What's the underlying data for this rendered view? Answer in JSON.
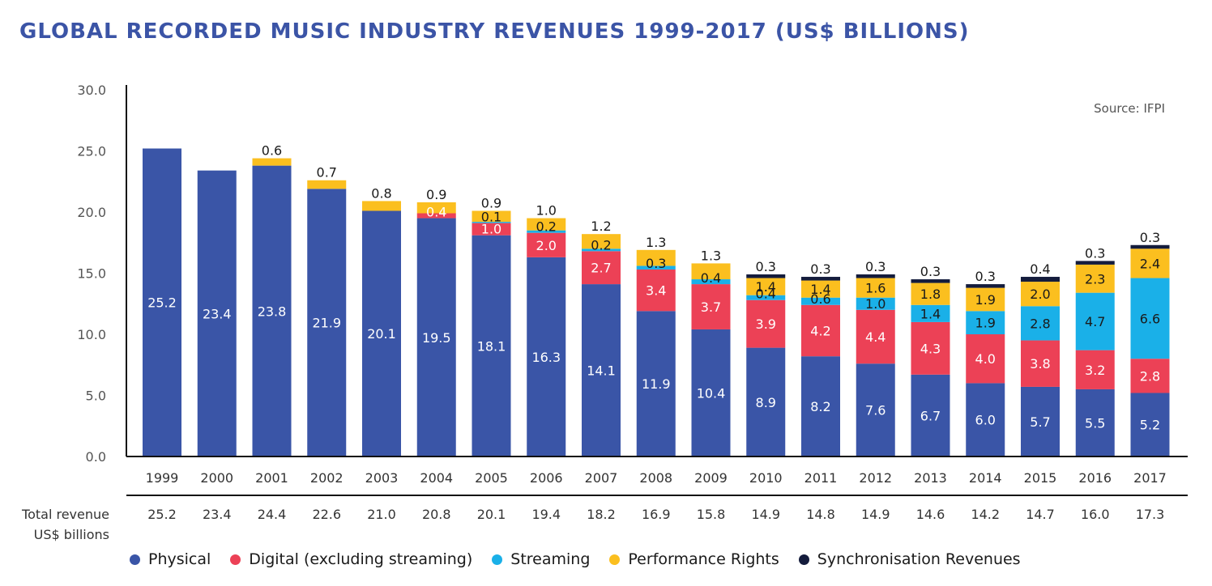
{
  "chart_data": {
    "type": "bar",
    "stacked": true,
    "title": "GLOBAL RECORDED MUSIC INDUSTRY REVENUES 1999-2017 (US$ BILLIONS)",
    "source_note": "Source: IFPI",
    "ylim": [
      0,
      30
    ],
    "yticks": [
      "0.0",
      "5.0",
      "10.0",
      "15.0",
      "20.0",
      "25.0",
      "30.0"
    ],
    "categories": [
      "1999",
      "2000",
      "2001",
      "2002",
      "2003",
      "2004",
      "2005",
      "2006",
      "2007",
      "2008",
      "2009",
      "2010",
      "2011",
      "2012",
      "2013",
      "2014",
      "2015",
      "2016",
      "2017"
    ],
    "series": [
      {
        "name": "Physical",
        "color": "#3a55a7",
        "values": [
          25.2,
          23.4,
          23.8,
          21.9,
          20.1,
          19.5,
          18.1,
          16.3,
          14.1,
          11.9,
          10.4,
          8.9,
          8.2,
          7.6,
          6.7,
          6.0,
          5.7,
          5.5,
          5.2
        ],
        "labels": [
          "25.2",
          "23.4",
          "23.8",
          "21.9",
          "20.1",
          "19.5",
          "18.1",
          "16.3",
          "14.1",
          "11.9",
          "10.4",
          "8.9",
          "8.2",
          "7.6",
          "6.7",
          "6.0",
          "5.7",
          "5.5",
          "5.2"
        ]
      },
      {
        "name": "Digital (excluding streaming)",
        "color": "#ec4156",
        "values": [
          0,
          0,
          0,
          0,
          0,
          0.4,
          1.0,
          2.0,
          2.7,
          3.4,
          3.7,
          3.9,
          4.2,
          4.4,
          4.3,
          4.0,
          3.8,
          3.2,
          2.8
        ],
        "labels": [
          "",
          "",
          "",
          "",
          "",
          "0.4",
          "1.0",
          "2.0",
          "2.7",
          "3.4",
          "3.7",
          "3.9",
          "4.2",
          "4.4",
          "4.3",
          "4.0",
          "3.8",
          "3.2",
          "2.8"
        ]
      },
      {
        "name": "Streaming",
        "color": "#1ab0e8",
        "values": [
          0,
          0,
          0,
          0,
          0,
          0,
          0.1,
          0.2,
          0.2,
          0.3,
          0.4,
          0.4,
          0.6,
          1.0,
          1.4,
          1.9,
          2.8,
          4.7,
          6.6
        ],
        "labels": [
          "",
          "",
          "",
          "",
          "",
          "",
          "0.1",
          "0.2",
          "0.2",
          "0.3",
          "0.4",
          "0.4",
          "0.6",
          "1.0",
          "1.4",
          "1.9",
          "2.8",
          "4.7",
          "6.6"
        ]
      },
      {
        "name": "Performance Rights",
        "color": "#fbbf1f",
        "values": [
          0,
          0,
          0.6,
          0.7,
          0.8,
          0.9,
          0.9,
          1.0,
          1.2,
          1.3,
          1.3,
          1.4,
          1.4,
          1.6,
          1.8,
          1.9,
          2.0,
          2.3,
          2.4
        ],
        "labels": [
          "",
          "",
          "0.6",
          "0.7",
          "0.8",
          "0.9",
          "0.9",
          "1.0",
          "1.2",
          "1.3",
          "1.3",
          "1.4",
          "1.4",
          "1.6",
          "1.8",
          "1.9",
          "2.0",
          "2.3",
          "2.4"
        ]
      },
      {
        "name": "Synchronisation Revenues",
        "color": "#141c3c",
        "values": [
          0,
          0,
          0,
          0,
          0,
          0,
          0,
          0,
          0,
          0,
          0,
          0.3,
          0.3,
          0.3,
          0.3,
          0.3,
          0.4,
          0.3,
          0.3
        ],
        "labels": [
          "",
          "",
          "",
          "",
          "",
          "",
          "",
          "",
          "",
          "",
          "",
          "0.3",
          "0.3",
          "0.3",
          "0.3",
          "0.3",
          "0.4",
          "0.3",
          "0.3"
        ]
      }
    ],
    "totals_label": [
      "Total revenue",
      "US$ billions"
    ],
    "totals": [
      "25.2",
      "23.4",
      "24.4",
      "22.6",
      "21.0",
      "20.8",
      "20.1",
      "19.4",
      "18.2",
      "16.9",
      "15.8",
      "14.9",
      "14.8",
      "14.9",
      "14.6",
      "14.2",
      "14.7",
      "16.0",
      "17.3"
    ],
    "legend_position": "bottom",
    "grid": false
  }
}
